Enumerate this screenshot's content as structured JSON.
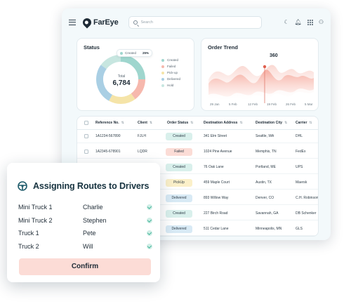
{
  "app": {
    "logo_text": "FarEye"
  },
  "search": {
    "placeholder": "Search"
  },
  "top_icons": [
    "moon-icon",
    "bell-icon",
    "apps-grid-icon",
    "user-icon"
  ],
  "status": {
    "title": "Status",
    "chip_label": "Created",
    "chip_value": "25%",
    "total_label": "Total",
    "total_value": "6,784",
    "legend": [
      {
        "label": "Created",
        "color": "#9fd6ce"
      },
      {
        "label": "Failed",
        "color": "#f6b8ad"
      },
      {
        "label": "Pick-up",
        "color": "#f5e4a8"
      },
      {
        "label": "Delivered",
        "color": "#a9cfe4"
      },
      {
        "label": "Hold",
        "color": "#c7e6e0"
      }
    ],
    "segments": [
      25,
      15,
      18,
      27,
      15
    ]
  },
  "order_trend": {
    "title": "Order Trend",
    "peak_value": "360",
    "x_labels": [
      "29 Jan",
      "5 Feb",
      "12 Feb",
      "19 Feb",
      "26 Feb",
      "5 Mar"
    ]
  },
  "table": {
    "headers": [
      "Reference No.",
      "Client",
      "Order Status",
      "Destination Address",
      "Destination City",
      "Carrier"
    ],
    "rows": [
      {
        "ref": "1A1234-567890",
        "client": "FJLH",
        "status": "Created",
        "address": "341 Elm Street",
        "city": "Seattle, WA",
        "carrier": "DHL"
      },
      {
        "ref": "1A2345-678901",
        "client": "LQDR",
        "status": "Failed",
        "address": "1024 Pine Avenue",
        "city": "Memphis, TN",
        "carrier": "FedEx"
      },
      {
        "ref": "1A3456-789012",
        "client": "XTSN",
        "status": "Created",
        "address": "76 Oak Lane",
        "city": "Portland, ME",
        "carrier": "UPS"
      },
      {
        "ref": "1A4567-890123",
        "client": "GZMK",
        "status": "PickUp",
        "address": "459 Maple Court",
        "city": "Austin, TX",
        "carrier": "Maersk"
      },
      {
        "ref": "1A5678-901234",
        "client": "HRPW",
        "status": "Delivered",
        "address": "893 Willow Way",
        "city": "Denver, CO",
        "carrier": "C.H. Robinson"
      },
      {
        "ref": "1A6789-012345",
        "client": "BVNQ",
        "status": "Created",
        "address": "227 Birch Road",
        "city": "Savannah, GA",
        "carrier": "DB Schenker"
      },
      {
        "ref": "1A7890-123456",
        "client": "KTSE",
        "status": "Delivered",
        "address": "511 Cedar Lane",
        "city": "Minneapolis, MN",
        "carrier": "GLS"
      }
    ],
    "status_colors": {
      "Created": "#d9f0ec",
      "Failed": "#fbdcd6",
      "PickUp": "#fbf0c9",
      "Delivered": "#d8eaf5"
    }
  },
  "assign": {
    "title": "Assigning Routes to Drivers",
    "rows": [
      {
        "truck": "Mini Truck 1",
        "driver": "Charlie"
      },
      {
        "truck": "Mini Truck 2",
        "driver": "Stephen"
      },
      {
        "truck": "Truck 1",
        "driver": "Pete"
      },
      {
        "truck": "Truck 2",
        "driver": "Will"
      }
    ],
    "confirm_label": "Confirm"
  }
}
